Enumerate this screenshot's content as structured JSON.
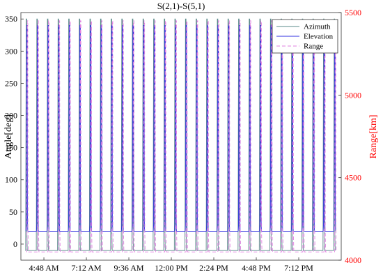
{
  "chart_data": {
    "type": "line",
    "title": "S(2,1)-S(5,1)",
    "ylabel_left": "Angle[deg]",
    "ylabel_right": "Range[km]",
    "xlabel": "",
    "x_tick_labels": [
      "4:48 AM",
      "7:12 AM",
      "9:36 AM",
      "12:00 PM",
      "2:24 PM",
      "4:48 PM",
      "7:12 PM"
    ],
    "y_left_ticks": [
      0,
      50,
      100,
      150,
      200,
      250,
      300,
      350
    ],
    "y_right_ticks": [
      4000,
      4500,
      5000,
      5500
    ],
    "ylim_left": [
      -25,
      360
    ],
    "ylim_right": [
      4000,
      5500
    ],
    "x_range_hours": [
      3.5,
      21.6
    ],
    "grid": false,
    "legend_position": "top-right",
    "cycle_count": 30,
    "cycle_period_hours": 0.6,
    "series": [
      {
        "name": "Azimuth",
        "color": "#5a8a8a",
        "axis": "left",
        "style": "solid",
        "high_value": 350,
        "low_value": -10
      },
      {
        "name": "Elevation",
        "color": "#3030e0",
        "axis": "left",
        "style": "solid",
        "high_value": 340,
        "low_value": 20
      },
      {
        "name": "Range",
        "color": "#e080e0",
        "axis": "right",
        "style": "dashed",
        "high_value": 5450,
        "low_value": 4050
      }
    ],
    "colors": {
      "left_axis": "#000000",
      "right_axis": "#ff0000"
    }
  }
}
